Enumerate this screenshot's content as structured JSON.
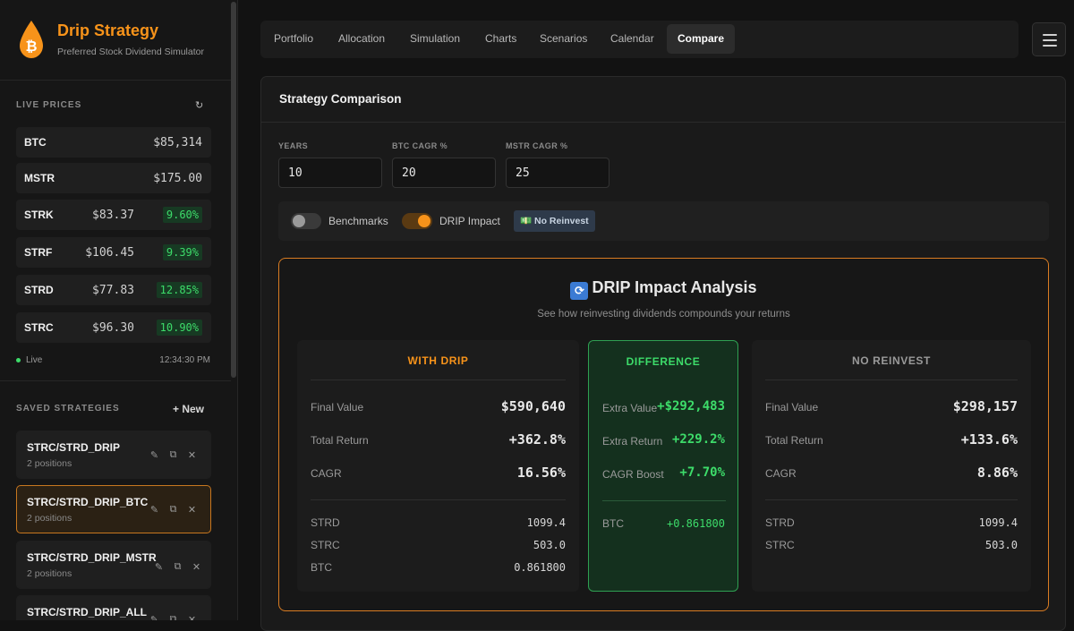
{
  "brand": {
    "title": "Drip Strategy",
    "subtitle": "Preferred Stock Dividend Simulator"
  },
  "live_prices": {
    "title": "LIVE PRICES",
    "refresh_icon": "↻",
    "rows": [
      {
        "symbol": "BTC",
        "price": "$85,314",
        "yield": ""
      },
      {
        "symbol": "MSTR",
        "price": "$175.00",
        "yield": ""
      },
      {
        "symbol": "STRK",
        "price": "$83.37",
        "yield": "9.60%"
      },
      {
        "symbol": "STRF",
        "price": "$106.45",
        "yield": "9.39%"
      },
      {
        "symbol": "STRD",
        "price": "$77.83",
        "yield": "12.85%"
      },
      {
        "symbol": "STRC",
        "price": "$96.30",
        "yield": "10.90%"
      }
    ],
    "status": "Live",
    "time": "12:34:30 PM"
  },
  "saved_strategies": {
    "title": "SAVED STRATEGIES",
    "new_label": "+ New",
    "items": [
      {
        "name": "STRC/STRD_DRIP",
        "positions": "2 positions"
      },
      {
        "name": "STRC/STRD_DRIP_BTC",
        "positions": "2 positions"
      },
      {
        "name": "STRC/STRD_DRIP_MSTR",
        "positions": "2 positions"
      },
      {
        "name": "STRC/STRD_DRIP_ALL",
        "positions": ""
      }
    ],
    "action_icons": {
      "edit": "✎",
      "copy": "⧉",
      "delete": "✕"
    }
  },
  "tabs": [
    "Portfolio",
    "Allocation",
    "Simulation",
    "Charts",
    "Scenarios",
    "Calendar",
    "Compare"
  ],
  "panel": {
    "title": "Strategy Comparison",
    "fields": [
      {
        "label": "YEARS",
        "value": "10"
      },
      {
        "label": "BTC CAGR %",
        "value": "20"
      },
      {
        "label": "MSTR CAGR %",
        "value": "25"
      }
    ],
    "toggles": {
      "benchmarks": "Benchmarks",
      "drip_impact": "DRIP Impact",
      "no_reinvest": "💵 No Reinvest"
    }
  },
  "drip": {
    "icon": "🔄",
    "title": "DRIP Impact Analysis",
    "subtitle": "See how reinvesting dividends compounds your returns",
    "with_drip": {
      "heading": "WITH DRIP",
      "final_value_label": "Final Value",
      "final_value": "$590,640",
      "total_return_label": "Total Return",
      "total_return": "+362.8%",
      "cagr_label": "CAGR",
      "cagr": "16.56%",
      "holdings": [
        {
          "label": "STRD",
          "value": "1099.4"
        },
        {
          "label": "STRC",
          "value": "503.0"
        },
        {
          "label": "BTC",
          "value": "0.861800"
        }
      ]
    },
    "difference": {
      "heading": "DIFFERENCE",
      "extra_value_label": "Extra Value",
      "extra_value": "+$292,483",
      "extra_return_label": "Extra Return",
      "extra_return": "+229.2%",
      "cagr_boost_label": "CAGR Boost",
      "cagr_boost": "+7.70%",
      "btc_label": "BTC",
      "btc_value": "+0.861800"
    },
    "no_reinvest": {
      "heading": "NO REINVEST",
      "final_value_label": "Final Value",
      "final_value": "$298,157",
      "total_return_label": "Total Return",
      "total_return": "+133.6%",
      "cagr_label": "CAGR",
      "cagr": "8.86%",
      "holdings": [
        {
          "label": "STRD",
          "value": "1099.4"
        },
        {
          "label": "STRC",
          "value": "503.0"
        }
      ]
    }
  },
  "colors": {
    "accent": "#f7931a",
    "positive": "#3ddc6a",
    "panel": "#1a1a1a"
  }
}
